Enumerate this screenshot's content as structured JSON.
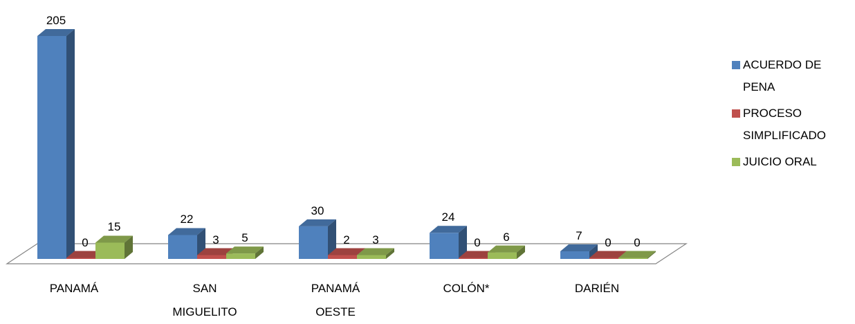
{
  "chart_data": {
    "type": "bar",
    "categories": [
      "PANAMÁ",
      "SAN MIGUELITO",
      "PANAMÁ OESTE",
      "COLÓN*",
      "DARIÉN"
    ],
    "category_lines": [
      [
        "PANAMÁ"
      ],
      [
        "SAN",
        "MIGUELITO"
      ],
      [
        "PANAMÁ",
        "OESTE"
      ],
      [
        "COLÓN*"
      ],
      [
        "DARIÉN"
      ]
    ],
    "series": [
      {
        "name": "ACUERDO DE PENA",
        "values": [
          205,
          22,
          30,
          24,
          7
        ],
        "color": "#4F81BD"
      },
      {
        "name": "PROCESO SIMPLIFICADO",
        "values": [
          0,
          3,
          2,
          0,
          0
        ],
        "color": "#C0504D"
      },
      {
        "name": "JUICIO ORAL",
        "values": [
          15,
          5,
          3,
          6,
          0
        ],
        "color": "#9BBB59"
      }
    ],
    "legend_lines": [
      [
        "ACUERDO DE",
        "PENA"
      ],
      [
        "PROCESO",
        "SIMPLIFICADO"
      ],
      [
        "JUICIO ORAL"
      ]
    ],
    "legend_position": "right",
    "grid": false,
    "ylim": [
      0,
      205
    ],
    "style": "3d-clustered-column"
  }
}
